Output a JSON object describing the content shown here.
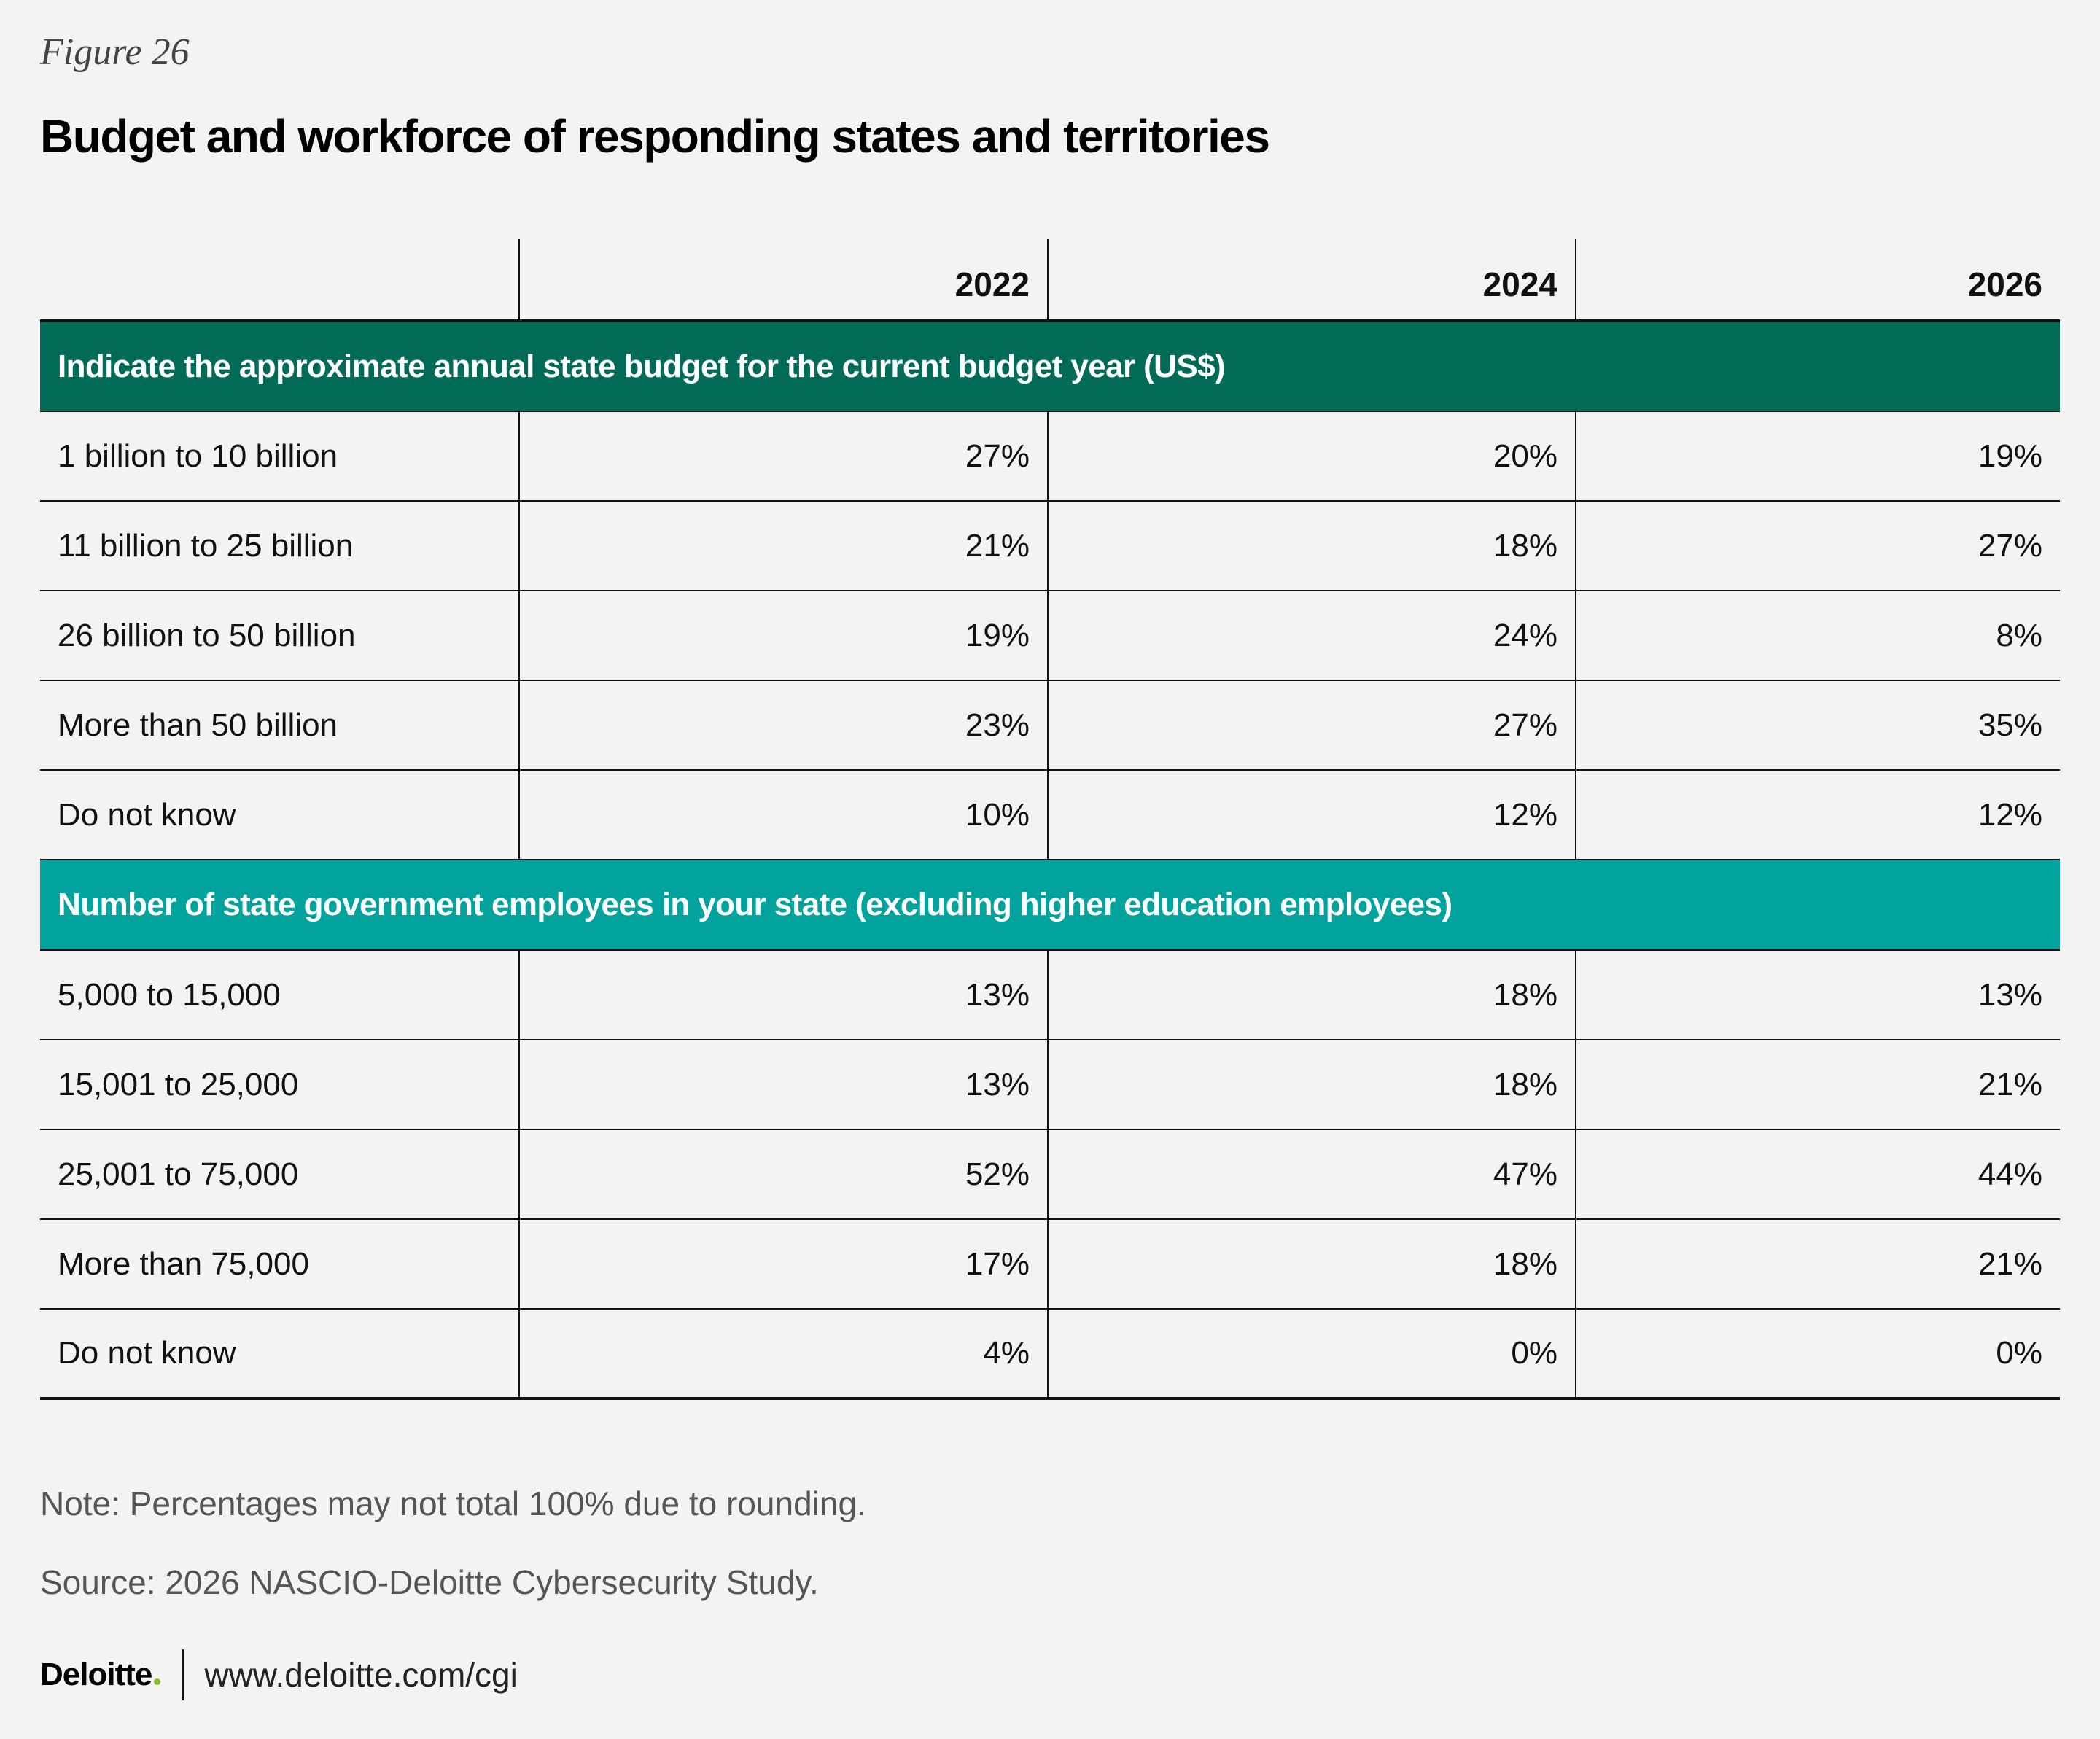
{
  "figure_label": "Figure 26",
  "title": "Budget and workforce of responding states and territories",
  "chart_data": {
    "type": "table",
    "title": "Budget and workforce of responding states and territories",
    "columns": [
      "2022",
      "2024",
      "2026"
    ],
    "sections": [
      {
        "heading": "Indicate the approximate annual state budget for the current budget year (US$)",
        "rows": [
          {
            "label": "1 billion to 10 billion",
            "values": [
              "27%",
              "20%",
              "19%"
            ]
          },
          {
            "label": "11 billion to 25 billion",
            "values": [
              "21%",
              "18%",
              "27%"
            ]
          },
          {
            "label": "26 billion to 50 billion",
            "values": [
              "19%",
              "24%",
              "8%"
            ]
          },
          {
            "label": "More than 50 billion",
            "values": [
              "23%",
              "27%",
              "35%"
            ]
          },
          {
            "label": "Do not know",
            "values": [
              "10%",
              "12%",
              "12%"
            ]
          }
        ]
      },
      {
        "heading": "Number of state government employees in your state (excluding higher education employees)",
        "rows": [
          {
            "label": "5,000 to 15,000",
            "values": [
              "13%",
              "18%",
              "13%"
            ]
          },
          {
            "label": "15,001 to 25,000",
            "values": [
              "13%",
              "18%",
              "21%"
            ]
          },
          {
            "label": "25,001 to 75,000",
            "values": [
              "52%",
              "47%",
              "44%"
            ]
          },
          {
            "label": "More than 75,000",
            "values": [
              "17%",
              "18%",
              "21%"
            ]
          },
          {
            "label": "Do not know",
            "values": [
              "4%",
              "0%",
              "0%"
            ]
          }
        ]
      }
    ]
  },
  "notes": {
    "note": "Note: Percentages may not total 100% due to rounding.",
    "source": "Source: 2026 NASCIO-Deloitte Cybersecurity Study."
  },
  "footer": {
    "logo": "Deloitte",
    "url": "www.deloitte.com/cgi"
  },
  "colors": {
    "section_1_bg": "#026b58",
    "section_2_bg": "#02a39c",
    "logo_dot": "#86bc25"
  }
}
